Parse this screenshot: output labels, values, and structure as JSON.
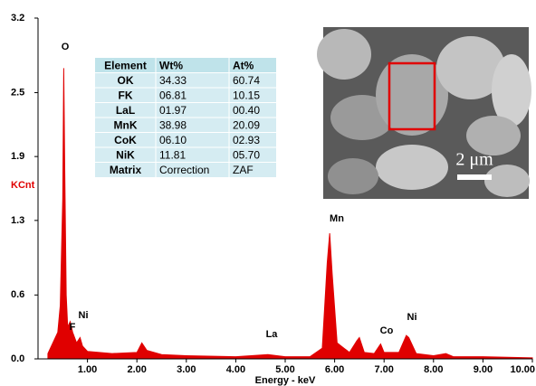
{
  "chart_data": {
    "type": "area",
    "color": "#e00000",
    "y_label": "KCnt",
    "x_label": "Energy - keV",
    "xlim": [
      0,
      10
    ],
    "ylim": [
      0,
      3.2
    ],
    "xticks": [
      {
        "value": 1,
        "label": "1.00"
      },
      {
        "value": 2,
        "label": "2.00"
      },
      {
        "value": 3,
        "label": "3.00"
      },
      {
        "value": 4,
        "label": "4.00"
      },
      {
        "value": 5,
        "label": "5.00"
      },
      {
        "value": 6,
        "label": "6.00"
      },
      {
        "value": 7,
        "label": "7.00"
      },
      {
        "value": 8,
        "label": "8.00"
      },
      {
        "value": 9,
        "label": "9.00"
      },
      {
        "value": 10,
        "label": "10.00"
      }
    ],
    "yticks": [
      {
        "value": 0,
        "label": "0.0"
      },
      0.6,
      1.3,
      1.9,
      2.5,
      3.2
    ],
    "x": [
      0.2,
      0.3,
      0.35,
      0.4,
      0.45,
      0.5,
      0.52,
      0.54,
      0.57,
      0.6,
      0.65,
      0.7,
      0.78,
      0.85,
      0.9,
      1.0,
      1.5,
      2.0,
      2.1,
      2.2,
      2.5,
      3.0,
      4.0,
      4.65,
      5.0,
      5.5,
      5.75,
      5.85,
      5.9,
      5.95,
      6.05,
      6.3,
      6.45,
      6.5,
      6.6,
      6.8,
      6.93,
      7.0,
      7.3,
      7.45,
      7.5,
      7.65,
      8.0,
      8.25,
      8.4,
      9.0,
      10.0
    ],
    "values": [
      0.05,
      0.15,
      0.2,
      0.25,
      0.5,
      1.5,
      2.73,
      1.8,
      0.6,
      0.3,
      0.35,
      0.25,
      0.15,
      0.2,
      0.12,
      0.07,
      0.05,
      0.06,
      0.15,
      0.08,
      0.04,
      0.03,
      0.02,
      0.04,
      0.02,
      0.02,
      0.1,
      0.9,
      1.18,
      0.8,
      0.15,
      0.06,
      0.17,
      0.2,
      0.06,
      0.05,
      0.14,
      0.06,
      0.06,
      0.22,
      0.2,
      0.05,
      0.03,
      0.05,
      0.02,
      0.02,
      0.01
    ],
    "annotations": [
      "O",
      "F",
      "Ni",
      "La",
      "Mn",
      "Co",
      "Ni"
    ],
    "table": {
      "columns": [
        "Element",
        "Wt%",
        "At%"
      ],
      "rows": [
        [
          "OK",
          "34.33",
          "60.74"
        ],
        [
          "FK",
          "06.81",
          "10.15"
        ],
        [
          "LaL",
          "01.97",
          "00.40"
        ],
        [
          "MnK",
          "38.98",
          "20.09"
        ],
        [
          "CoK",
          "06.10",
          "02.93"
        ],
        [
          "NiK",
          "11.81",
          "05.70"
        ],
        [
          "Matrix",
          "Correction",
          "ZAF"
        ]
      ]
    },
    "image_scale_label": "2 μm"
  }
}
